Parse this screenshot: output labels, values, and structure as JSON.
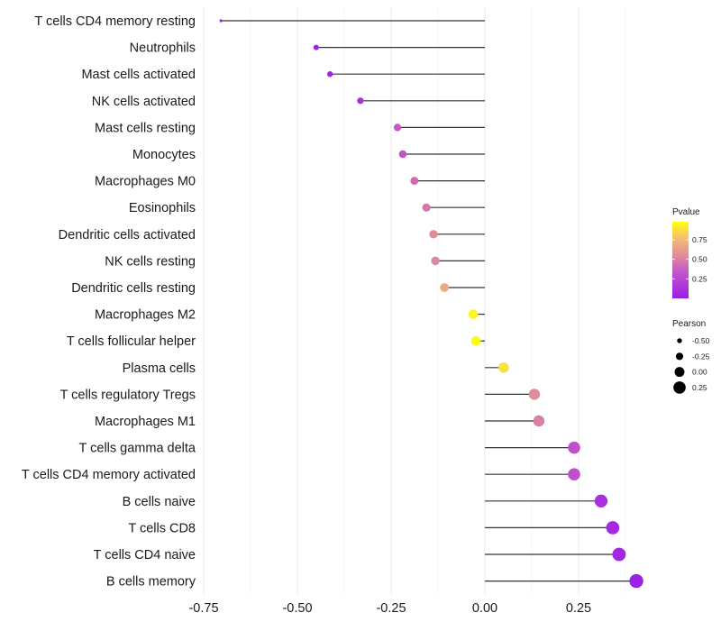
{
  "chart_data": {
    "type": "lollipop",
    "title": "",
    "xlabel": "",
    "ylabel": "",
    "xlim": [
      -0.75,
      0.42
    ],
    "x_ticks": [
      -0.75,
      -0.5,
      -0.25,
      0.0,
      0.25
    ],
    "x_tick_labels": [
      "-0.75",
      "-0.50",
      "-0.25",
      "0.00",
      "0.25"
    ],
    "grid": true,
    "categories": [
      "T cells CD4 memory resting",
      "Neutrophils",
      "Mast cells activated",
      "NK cells activated",
      "Mast cells resting",
      "Monocytes",
      "Macrophages M0",
      "Eosinophils",
      "Dendritic cells activated",
      "NK cells resting",
      "Dendritic cells resting",
      "Macrophages M2",
      "T cells follicular helper",
      "Plasma cells",
      "T cells regulatory  Tregs ",
      "Macrophages M1",
      "T cells gamma delta",
      "T cells CD4 memory activated",
      "B cells naive",
      "T cells CD8",
      "T cells CD4 naive",
      "B cells memory"
    ],
    "pearson": [
      -0.704,
      -0.45,
      -0.413,
      -0.332,
      -0.233,
      -0.219,
      -0.188,
      -0.156,
      -0.137,
      -0.132,
      -0.108,
      -0.031,
      -0.024,
      0.05,
      0.132,
      0.144,
      0.238,
      0.238,
      0.31,
      0.341,
      0.358,
      0.404
    ],
    "pvalue": [
      0.0,
      0.02,
      0.05,
      0.12,
      0.35,
      0.33,
      0.42,
      0.47,
      0.55,
      0.53,
      0.68,
      0.95,
      0.97,
      0.88,
      0.55,
      0.5,
      0.3,
      0.3,
      0.12,
      0.08,
      0.06,
      0.02
    ],
    "legends": [
      {
        "title": "Pvalue",
        "type": "colorbar",
        "ticks": [
          0.25,
          0.5,
          0.75
        ],
        "tick_labels": [
          "0.25",
          "0.50",
          "0.75"
        ],
        "range": [
          0,
          0.98
        ],
        "colors": [
          "#9a1de8",
          "#d46fb6",
          "#f0b27a",
          "#ffff00"
        ],
        "placement": "right"
      },
      {
        "title": "Pearson",
        "type": "size",
        "ticks": [
          -0.5,
          -0.25,
          0.0,
          0.25
        ],
        "tick_labels": [
          "-0.50",
          "-0.25",
          "0.00",
          "0.25"
        ],
        "placement": "right"
      }
    ]
  }
}
